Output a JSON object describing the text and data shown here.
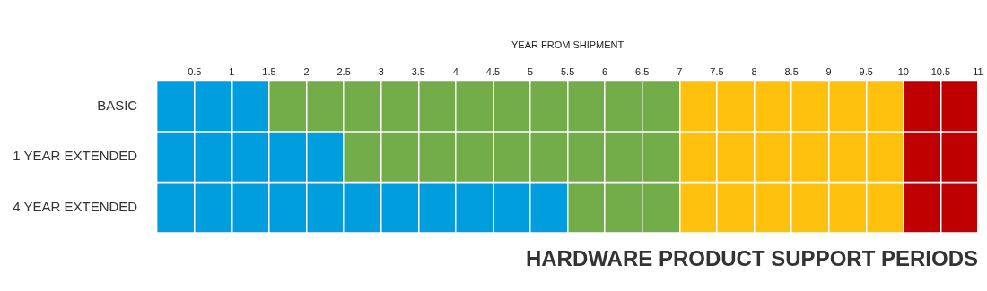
{
  "chart_data": {
    "type": "bar",
    "orientation": "horizontal",
    "stacked": true,
    "title": "HARDWARE PRODUCT SUPPORT PERIODS",
    "xlabel": "YEAR FROM SHIPMENT",
    "categories": [
      "BASIC",
      "1 YEAR EXTENDED",
      "4 YEAR EXTENDED"
    ],
    "series": [
      {
        "color": "#009ddf",
        "values": [
          1.5,
          2.5,
          5.5
        ]
      },
      {
        "color": "#72ad4a",
        "values": [
          5.5,
          4.5,
          1.5
        ]
      },
      {
        "color": "#ffc10e",
        "values": [
          3,
          3,
          3
        ]
      },
      {
        "color": "#c00000",
        "values": [
          1,
          1,
          1
        ]
      }
    ],
    "xlim": [
      0,
      11
    ],
    "xticks": [
      0.5,
      1,
      1.5,
      2,
      2.5,
      3,
      3.5,
      4,
      4.5,
      5,
      5.5,
      6,
      6.5,
      7,
      7.5,
      8,
      8.5,
      9,
      9.5,
      10,
      10.5,
      11
    ],
    "grid": "x",
    "legend": false
  }
}
